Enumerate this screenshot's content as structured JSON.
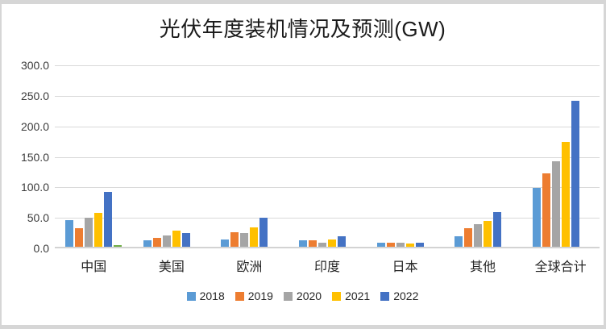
{
  "frame": {
    "border_color": "#d6d6d6",
    "surface_color": "#ffffff"
  },
  "chart_data": {
    "type": "bar",
    "title": "光伏年度装机情况及预测(GW)",
    "categories": [
      "中国",
      "美国",
      "欧洲",
      "印度",
      "日本",
      "其他",
      "全球合计"
    ],
    "series": [
      {
        "name": "2018",
        "color": "#5B9BD5",
        "in_legend": true,
        "values": [
          44,
          11,
          12,
          10,
          6,
          17,
          97
        ]
      },
      {
        "name": "2019",
        "color": "#ED7D31",
        "in_legend": true,
        "values": [
          30,
          15,
          24,
          11,
          7,
          31,
          120
        ]
      },
      {
        "name": "2020",
        "color": "#A5A5A5",
        "in_legend": true,
        "values": [
          48,
          19,
          22,
          7,
          7,
          37,
          140
        ]
      },
      {
        "name": "2021",
        "color": "#FFC000",
        "in_legend": true,
        "values": [
          55,
          27,
          32,
          12,
          5,
          42,
          172
        ]
      },
      {
        "name": "2022",
        "color": "#4472C4",
        "in_legend": true,
        "values": [
          90,
          23,
          47,
          17,
          7,
          57,
          239
        ]
      },
      {
        "name": "",
        "color": "#70AD47",
        "in_legend": false,
        "values": [
          3,
          0,
          0,
          0,
          0,
          0,
          0
        ]
      }
    ],
    "y_axis": {
      "min": 0,
      "max": 300,
      "step": 50,
      "tick_labels": [
        "300.0",
        "250.0",
        "200.0",
        "150.0",
        "100.0",
        "50.0",
        "0.0"
      ]
    },
    "xlabel": "",
    "ylabel": "",
    "grid": true,
    "gridline_color": "#d9d9d9",
    "legend_position": "bottom"
  }
}
